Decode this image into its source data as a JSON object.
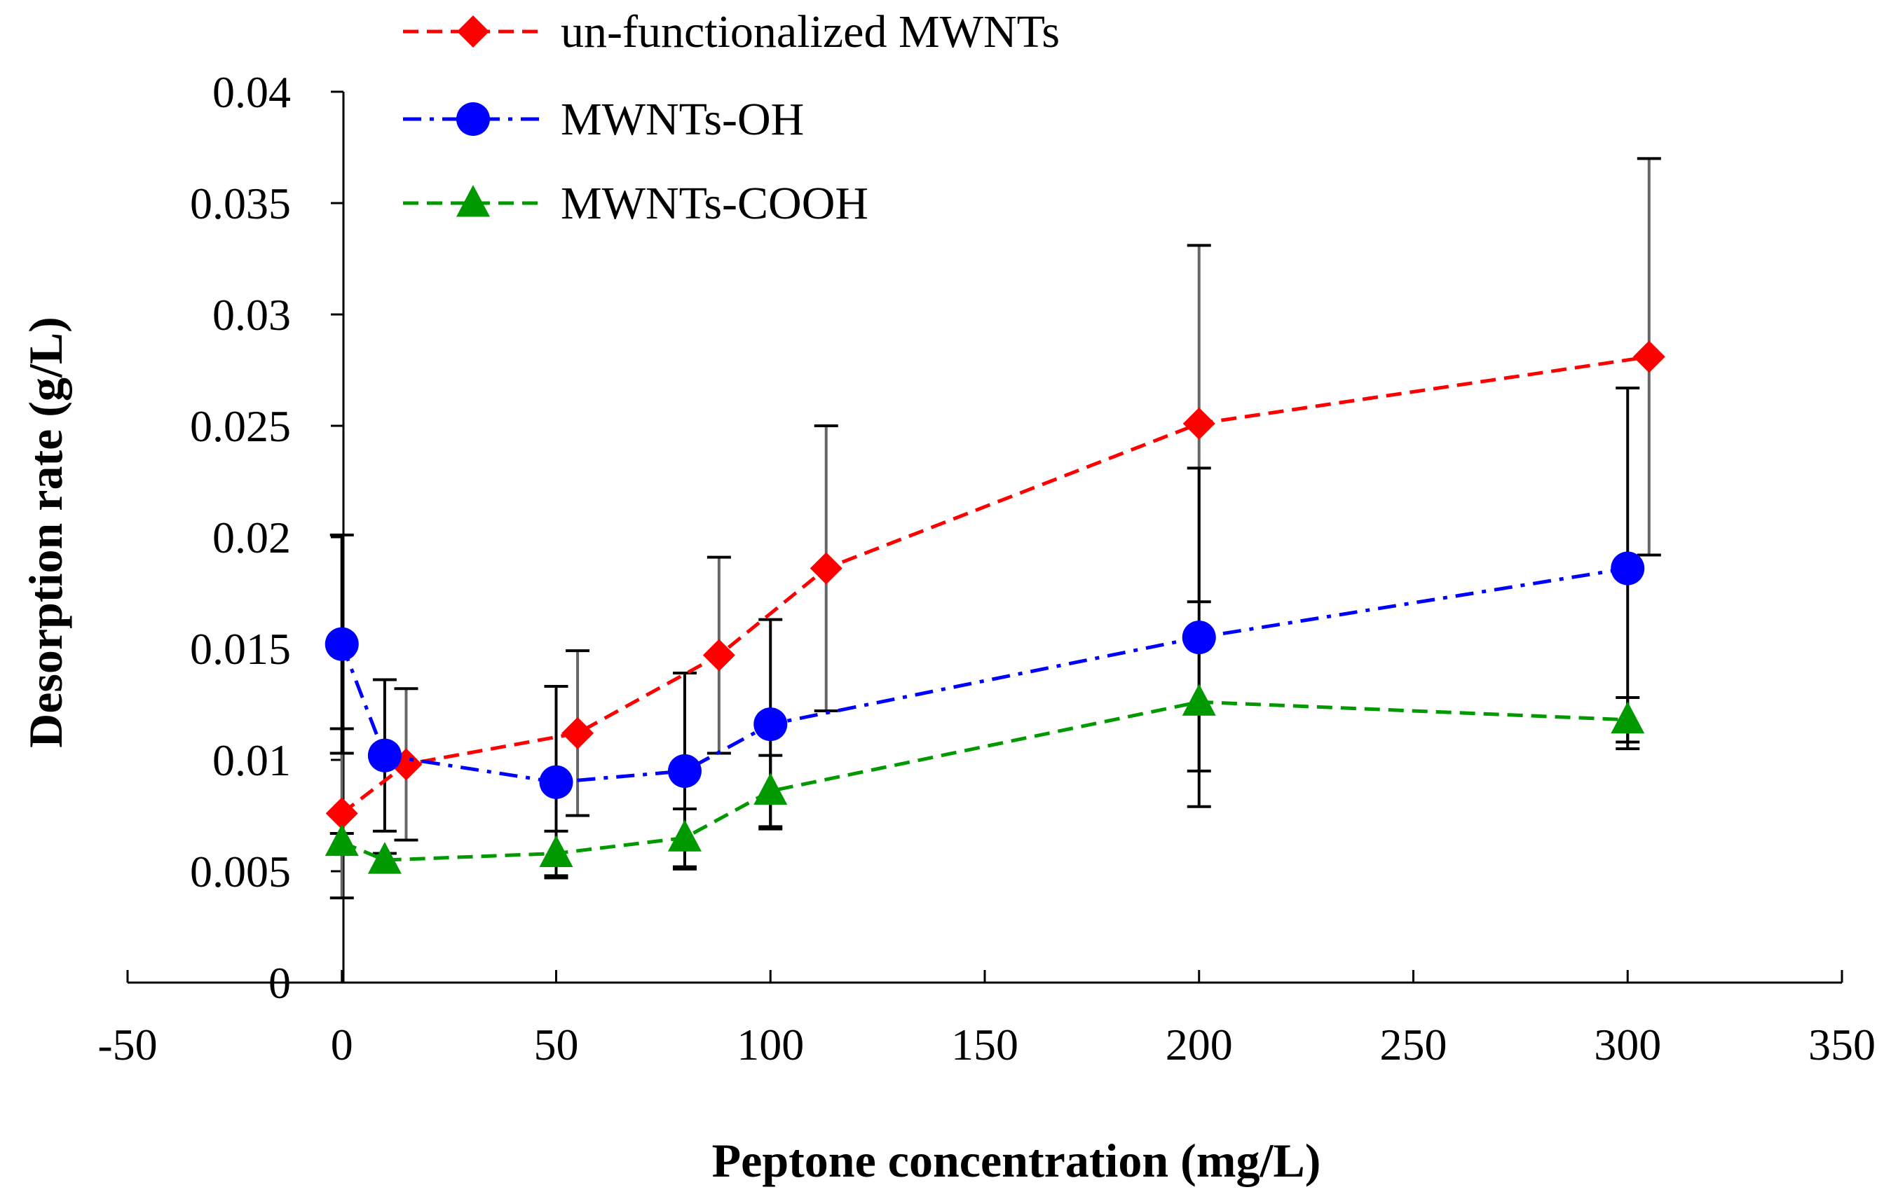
{
  "chart_data": {
    "type": "line",
    "title": "",
    "xlabel": "Peptone concentration (mg/L)",
    "ylabel": "Desorption rate  (g/L)",
    "xlim": [
      -50,
      350
    ],
    "ylim": [
      0,
      0.04
    ],
    "x_ticks": [
      -50,
      0,
      50,
      100,
      150,
      200,
      250,
      300,
      350
    ],
    "x_tick_labels": [
      "-50",
      "0",
      "50",
      "100",
      "150",
      "200",
      "250",
      "300",
      "350"
    ],
    "y_ticks": [
      0,
      0.005,
      0.01,
      0.015,
      0.02,
      0.025,
      0.03,
      0.035,
      0.04
    ],
    "y_tick_labels": [
      "0",
      "0.005",
      "0.01",
      "0.015",
      "0.02",
      "0.025",
      "0.03",
      "0.035",
      "0.04"
    ],
    "grid": false,
    "legend_position": "top-left",
    "series": [
      {
        "name": "un-functionalized MWNTs",
        "color": "#ff0000",
        "marker": "diamond",
        "line_style": "dashed",
        "x": [
          0,
          15,
          55,
          88,
          113,
          200,
          305
        ],
        "values": [
          0.0076,
          0.0098,
          0.0112,
          0.0147,
          0.0186,
          0.0251,
          0.0281
        ],
        "error": [
          0.0038,
          0.0034,
          0.0037,
          0.0044,
          0.0064,
          0.008,
          0.0089
        ]
      },
      {
        "name": "MWNTs-OH",
        "color": "#0000ff",
        "marker": "circle",
        "line_style": "dash-dot",
        "x": [
          0,
          10,
          50,
          80,
          100,
          200,
          300
        ],
        "values": [
          0.0152,
          0.0102,
          0.009,
          0.0095,
          0.0116,
          0.0155,
          0.0186
        ],
        "error": [
          0.0049,
          0.0034,
          0.0043,
          0.0044,
          0.0047,
          0.0076,
          0.0081
        ]
      },
      {
        "name": "MWNTs-COOH",
        "color": "#009900",
        "marker": "triangle",
        "line_style": "dashed",
        "x": [
          0,
          10,
          50,
          80,
          100,
          200,
          300
        ],
        "values": [
          0.0063,
          0.0055,
          0.0058,
          0.0065,
          0.0086,
          0.0126,
          0.0118
        ],
        "error": [
          0.0004,
          0.0003,
          0.001,
          0.0013,
          0.0016,
          0.0031,
          0.001
        ]
      }
    ]
  }
}
